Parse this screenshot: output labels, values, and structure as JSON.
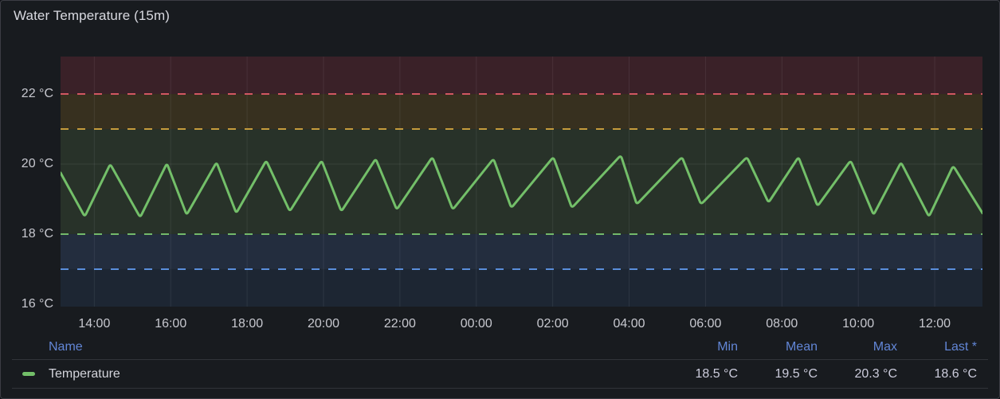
{
  "panel": {
    "title": "Water Temperature (15m)"
  },
  "colors": {
    "series_green": "#73BF69",
    "link_blue": "#6286d6",
    "panel_bg": "#181b1f"
  },
  "chart_data": {
    "type": "line",
    "title": "Water Temperature (15m)",
    "unit": "°C",
    "x_axis": {
      "duration_min": 1448,
      "ticks": [
        {
          "label": "14:00",
          "t": 53
        },
        {
          "label": "16:00",
          "t": 173
        },
        {
          "label": "18:00",
          "t": 293
        },
        {
          "label": "20:00",
          "t": 413
        },
        {
          "label": "22:00",
          "t": 533
        },
        {
          "label": "00:00",
          "t": 653
        },
        {
          "label": "02:00",
          "t": 773
        },
        {
          "label": "04:00",
          "t": 893
        },
        {
          "label": "06:00",
          "t": 1013
        },
        {
          "label": "08:00",
          "t": 1133
        },
        {
          "label": "10:00",
          "t": 1253
        },
        {
          "label": "12:00",
          "t": 1373
        }
      ]
    },
    "y_axis": {
      "min": 15.93,
      "max": 23.07,
      "ticks": [
        {
          "label": "16 °C",
          "value": 16
        },
        {
          "label": "18 °C",
          "value": 18
        },
        {
          "label": "20 °C",
          "value": 20
        },
        {
          "label": "22 °C",
          "value": 22
        }
      ]
    },
    "grid": {
      "h_lines": [
        20
      ],
      "v_at_ticks": true,
      "color": "rgba(240,246,255,0.08)"
    },
    "thresholds": {
      "zones": [
        {
          "from": 22,
          "to": 23.07,
          "fill": "#3a2128"
        },
        {
          "from": 21,
          "to": 22,
          "fill": "#37301f"
        },
        {
          "from": 18,
          "to": 21,
          "fill": "#283229"
        },
        {
          "from": 17,
          "to": 18,
          "fill": "#232d3e"
        },
        {
          "from": 15.93,
          "to": 17,
          "fill": "#1d2633"
        }
      ],
      "lines": [
        {
          "value": 22,
          "color": "#d15762"
        },
        {
          "value": 21,
          "color": "#c59b3d"
        },
        {
          "value": 18,
          "color": "#73b96a"
        },
        {
          "value": 17,
          "color": "#5a8edb"
        }
      ]
    },
    "series": [
      {
        "name": "Temperature",
        "color": "#73BF69",
        "width": 3,
        "points": [
          [
            0,
            19.75
          ],
          [
            38,
            18.5
          ],
          [
            78,
            20.0
          ],
          [
            125,
            18.48
          ],
          [
            167,
            20.02
          ],
          [
            198,
            18.55
          ],
          [
            245,
            20.05
          ],
          [
            276,
            18.6
          ],
          [
            323,
            20.1
          ],
          [
            360,
            18.65
          ],
          [
            410,
            20.1
          ],
          [
            441,
            18.65
          ],
          [
            495,
            20.15
          ],
          [
            528,
            18.7
          ],
          [
            584,
            20.2
          ],
          [
            616,
            18.7
          ],
          [
            680,
            20.15
          ],
          [
            708,
            18.75
          ],
          [
            774,
            20.2
          ],
          [
            803,
            18.75
          ],
          [
            880,
            20.25
          ],
          [
            905,
            18.85
          ],
          [
            976,
            20.2
          ],
          [
            1006,
            18.85
          ],
          [
            1078,
            20.2
          ],
          [
            1112,
            18.9
          ],
          [
            1159,
            20.2
          ],
          [
            1189,
            18.8
          ],
          [
            1241,
            20.1
          ],
          [
            1277,
            18.55
          ],
          [
            1320,
            20.05
          ],
          [
            1364,
            18.5
          ],
          [
            1402,
            19.95
          ],
          [
            1448,
            18.6
          ]
        ]
      }
    ]
  },
  "legend": {
    "headers": {
      "name": "Name",
      "min": "Min",
      "mean": "Mean",
      "max": "Max",
      "last": "Last *"
    },
    "row": {
      "name": "Temperature",
      "marker_color": "#73BF69",
      "min": "18.5 °C",
      "mean": "19.5 °C",
      "max": "20.3 °C",
      "last": "18.6 °C"
    }
  }
}
